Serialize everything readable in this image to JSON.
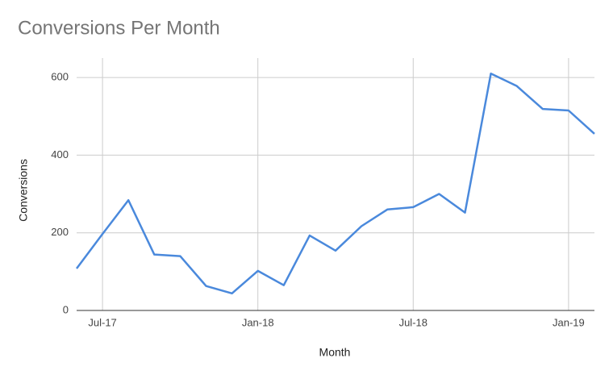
{
  "chart_data": {
    "type": "line",
    "title": "Conversions Per Month",
    "x_label": "Month",
    "y_label": "Conversions",
    "x": [
      "2017-06",
      "2017-07",
      "2017-08",
      "2017-09",
      "2017-10",
      "2017-11",
      "2017-12",
      "2018-01",
      "2018-02",
      "2018-03",
      "2018-04",
      "2018-05",
      "2018-06",
      "2018-07",
      "2018-08",
      "2018-09",
      "2018-10",
      "2018-11",
      "2018-12",
      "2019-01",
      "2019-02"
    ],
    "series": [
      {
        "name": "Conversions",
        "color": "#4a89dc",
        "values": [
          108,
          197,
          284,
          144,
          140,
          63,
          44,
          102,
          65,
          193,
          154,
          217,
          260,
          266,
          300,
          252,
          610,
          578,
          519,
          515,
          455
        ]
      }
    ],
    "xlim": [
      "2017-06",
      "2019-02"
    ],
    "xticks": [
      {
        "value": "2017-07",
        "label": "Jul-17"
      },
      {
        "value": "2018-01",
        "label": "Jan-18"
      },
      {
        "value": "2018-07",
        "label": "Jul-18"
      },
      {
        "value": "2019-01",
        "label": "Jan-19"
      }
    ],
    "ylim": [
      0,
      650
    ],
    "yticks": [
      0,
      200,
      400,
      600
    ],
    "grid": true
  }
}
